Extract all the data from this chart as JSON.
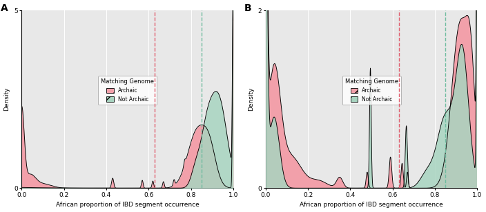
{
  "panel_A_label": "A",
  "panel_B_label": "B",
  "xlabel": "African proportion of IBD segment occurrence",
  "ylabel": "Density",
  "xlim": [
    0.0,
    1.0
  ],
  "ylim_A": [
    0,
    5
  ],
  "ylim_B": [
    0,
    2
  ],
  "xticks": [
    0.0,
    0.2,
    0.4,
    0.6,
    0.8,
    1.0
  ],
  "yticks_A": [
    0,
    5
  ],
  "yticks_B": [
    0,
    2
  ],
  "vline_A_pink": 0.63,
  "vline_A_teal": 0.85,
  "vline_B_pink": 0.63,
  "vline_B_teal": 0.85,
  "color_archaic_fill": "#F2A0AA",
  "color_notarchaic_fill": "#A8D4C0",
  "color_line": "#000000",
  "color_vline_pink": "#E06070",
  "color_vline_teal": "#70BCA0",
  "bg_color": "#E8E8E8",
  "legend_title": "Matching Genome",
  "legend_archaic": "Archaic",
  "legend_notarchaic": "Not Archaic"
}
